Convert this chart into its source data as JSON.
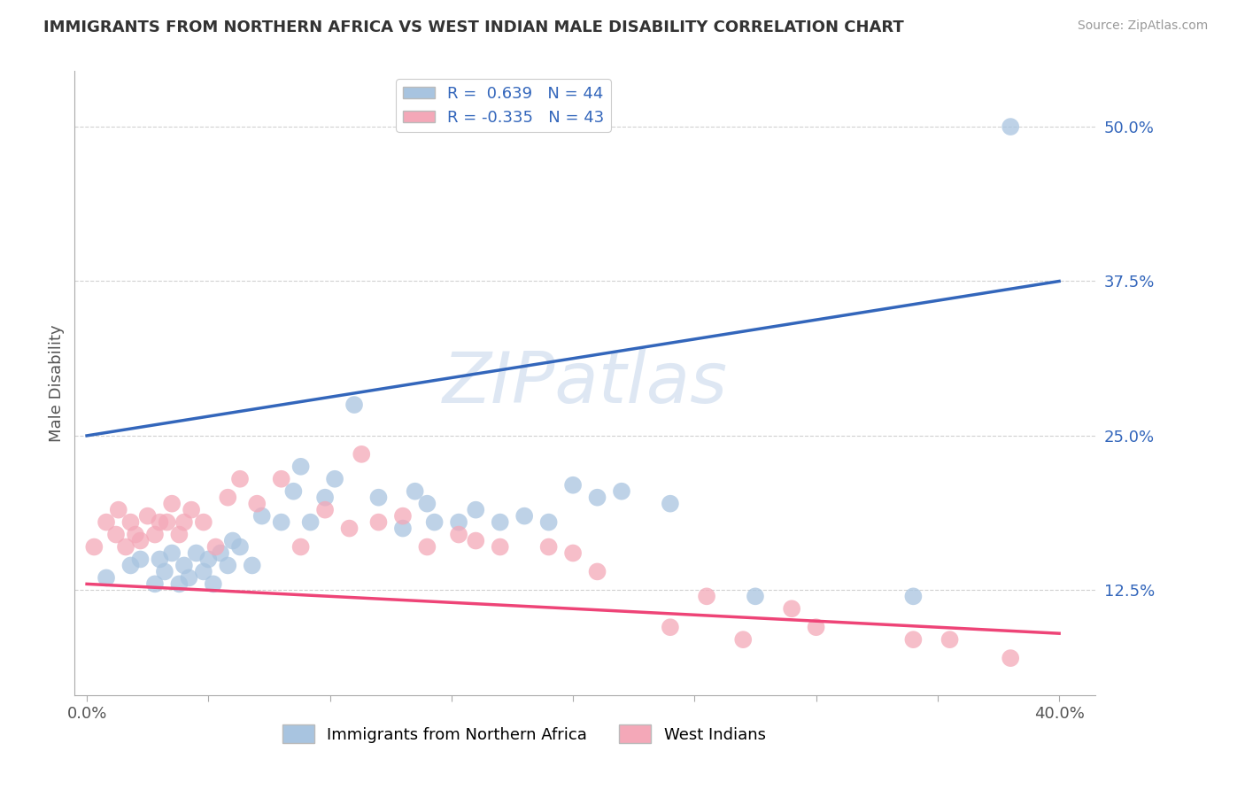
{
  "title": "IMMIGRANTS FROM NORTHERN AFRICA VS WEST INDIAN MALE DISABILITY CORRELATION CHART",
  "source": "Source: ZipAtlas.com",
  "ylabel": "Male Disability",
  "watermark": "ZIPatlas",
  "xlim": [
    -0.005,
    0.415
  ],
  "ylim": [
    0.04,
    0.545
  ],
  "xticks": [
    0.0,
    0.05,
    0.1,
    0.15,
    0.2,
    0.25,
    0.3,
    0.35,
    0.4
  ],
  "xticklabels": [
    "0.0%",
    "",
    "",
    "",
    "",
    "",
    "",
    "",
    "40.0%"
  ],
  "ytick_positions": [
    0.125,
    0.25,
    0.375,
    0.5
  ],
  "ytick_labels": [
    "12.5%",
    "25.0%",
    "37.5%",
    "50.0%"
  ],
  "blue_R": 0.639,
  "blue_N": 44,
  "pink_R": -0.335,
  "pink_N": 43,
  "blue_color": "#A8C4E0",
  "pink_color": "#F4A8B8",
  "blue_line_color": "#3366BB",
  "pink_line_color": "#EE4477",
  "legend_label_blue": "Immigrants from Northern Africa",
  "legend_label_pink": "West Indians",
  "blue_scatter_x": [
    0.008,
    0.018,
    0.022,
    0.028,
    0.03,
    0.032,
    0.035,
    0.038,
    0.04,
    0.042,
    0.045,
    0.048,
    0.05,
    0.052,
    0.055,
    0.058,
    0.06,
    0.063,
    0.068,
    0.072,
    0.08,
    0.085,
    0.088,
    0.092,
    0.098,
    0.102,
    0.11,
    0.12,
    0.13,
    0.135,
    0.14,
    0.143,
    0.153,
    0.16,
    0.17,
    0.18,
    0.19,
    0.2,
    0.21,
    0.22,
    0.24,
    0.275,
    0.34,
    0.38
  ],
  "blue_scatter_y": [
    0.135,
    0.145,
    0.15,
    0.13,
    0.15,
    0.14,
    0.155,
    0.13,
    0.145,
    0.135,
    0.155,
    0.14,
    0.15,
    0.13,
    0.155,
    0.145,
    0.165,
    0.16,
    0.145,
    0.185,
    0.18,
    0.205,
    0.225,
    0.18,
    0.2,
    0.215,
    0.275,
    0.2,
    0.175,
    0.205,
    0.195,
    0.18,
    0.18,
    0.19,
    0.18,
    0.185,
    0.18,
    0.21,
    0.2,
    0.205,
    0.195,
    0.12,
    0.12,
    0.5
  ],
  "pink_scatter_x": [
    0.003,
    0.008,
    0.012,
    0.013,
    0.016,
    0.018,
    0.02,
    0.022,
    0.025,
    0.028,
    0.03,
    0.033,
    0.035,
    0.038,
    0.04,
    0.043,
    0.048,
    0.053,
    0.058,
    0.063,
    0.07,
    0.08,
    0.088,
    0.098,
    0.108,
    0.113,
    0.12,
    0.13,
    0.14,
    0.153,
    0.16,
    0.17,
    0.19,
    0.2,
    0.21,
    0.24,
    0.255,
    0.27,
    0.29,
    0.3,
    0.34,
    0.355,
    0.38
  ],
  "pink_scatter_y": [
    0.16,
    0.18,
    0.17,
    0.19,
    0.16,
    0.18,
    0.17,
    0.165,
    0.185,
    0.17,
    0.18,
    0.18,
    0.195,
    0.17,
    0.18,
    0.19,
    0.18,
    0.16,
    0.2,
    0.215,
    0.195,
    0.215,
    0.16,
    0.19,
    0.175,
    0.235,
    0.18,
    0.185,
    0.16,
    0.17,
    0.165,
    0.16,
    0.16,
    0.155,
    0.14,
    0.095,
    0.12,
    0.085,
    0.11,
    0.095,
    0.085,
    0.085,
    0.07
  ],
  "blue_line_x": [
    0.0,
    0.4
  ],
  "blue_line_y_start": 0.25,
  "blue_line_y_end": 0.375,
  "pink_line_x": [
    0.0,
    0.4
  ],
  "pink_line_y_start": 0.13,
  "pink_line_y_end": 0.09
}
